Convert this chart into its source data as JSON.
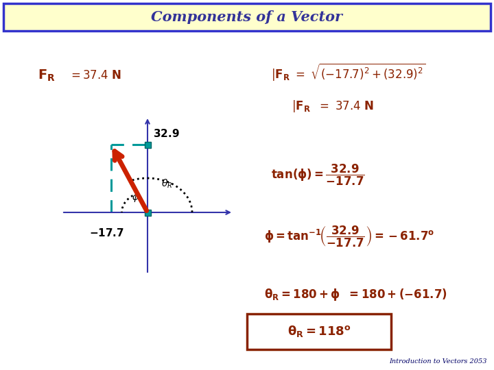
{
  "title": "Components of a Vector",
  "title_bg": "#ffffcc",
  "title_border": "#3333cc",
  "title_color": "#333399",
  "bg_color": "#ffffff",
  "math_color": "#8b2200",
  "vector_color": "#cc2200",
  "teal_color": "#009999",
  "axis_color": "#3333aa",
  "footer": "Introduction to Vectors 2053",
  "footer_color": "#000066"
}
